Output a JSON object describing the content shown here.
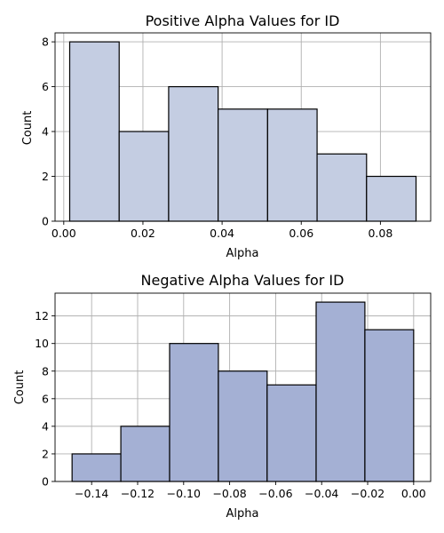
{
  "chart_data": [
    {
      "type": "bar",
      "title": "Positive Alpha Values for ID",
      "xlabel": "Alpha",
      "ylabel": "Count",
      "bar_color": "#c4cde2",
      "grid": true,
      "bins": [
        {
          "start": 0.0015,
          "end": 0.014,
          "count": 8
        },
        {
          "start": 0.014,
          "end": 0.0265,
          "count": 4
        },
        {
          "start": 0.0265,
          "end": 0.039,
          "count": 6
        },
        {
          "start": 0.039,
          "end": 0.0515,
          "count": 5
        },
        {
          "start": 0.0515,
          "end": 0.064,
          "count": 5
        },
        {
          "start": 0.064,
          "end": 0.0765,
          "count": 3
        },
        {
          "start": 0.0765,
          "end": 0.089,
          "count": 2
        }
      ],
      "xlim": [
        -0.0022,
        0.0927
      ],
      "ylim": [
        0,
        8.4
      ],
      "xticks": [
        0.0,
        0.02,
        0.04,
        0.06,
        0.08
      ],
      "xtick_labels": [
        "0.00",
        "0.02",
        "0.04",
        "0.06",
        "0.08"
      ],
      "yticks": [
        0,
        2,
        4,
        6,
        8
      ],
      "ytick_labels": [
        "0",
        "2",
        "4",
        "6",
        "8"
      ]
    },
    {
      "type": "bar",
      "title": "Negative Alpha Values for ID",
      "xlabel": "Alpha",
      "ylabel": "Count",
      "bar_color": "#a4b0d4",
      "grid": true,
      "bins": [
        {
          "start": -0.1485,
          "end": -0.1273,
          "count": 2
        },
        {
          "start": -0.1273,
          "end": -0.1061,
          "count": 4
        },
        {
          "start": -0.1061,
          "end": -0.0849,
          "count": 10
        },
        {
          "start": -0.0849,
          "end": -0.0637,
          "count": 8
        },
        {
          "start": -0.0637,
          "end": -0.0424,
          "count": 7
        },
        {
          "start": -0.0424,
          "end": -0.0212,
          "count": 13
        },
        {
          "start": -0.0212,
          "end": 0.0,
          "count": 11
        }
      ],
      "xlim": [
        -0.1559,
        0.0074
      ],
      "ylim": [
        0,
        13.65
      ],
      "xticks": [
        -0.14,
        -0.12,
        -0.1,
        -0.08,
        -0.06,
        -0.04,
        -0.02,
        0.0
      ],
      "xtick_labels": [
        "−0.14",
        "−0.12",
        "−0.10",
        "−0.08",
        "−0.06",
        "−0.04",
        "−0.02",
        "0.00"
      ],
      "yticks": [
        0,
        2,
        4,
        6,
        8,
        10,
        12
      ],
      "ytick_labels": [
        "0",
        "2",
        "4",
        "6",
        "8",
        "10",
        "12"
      ]
    }
  ]
}
